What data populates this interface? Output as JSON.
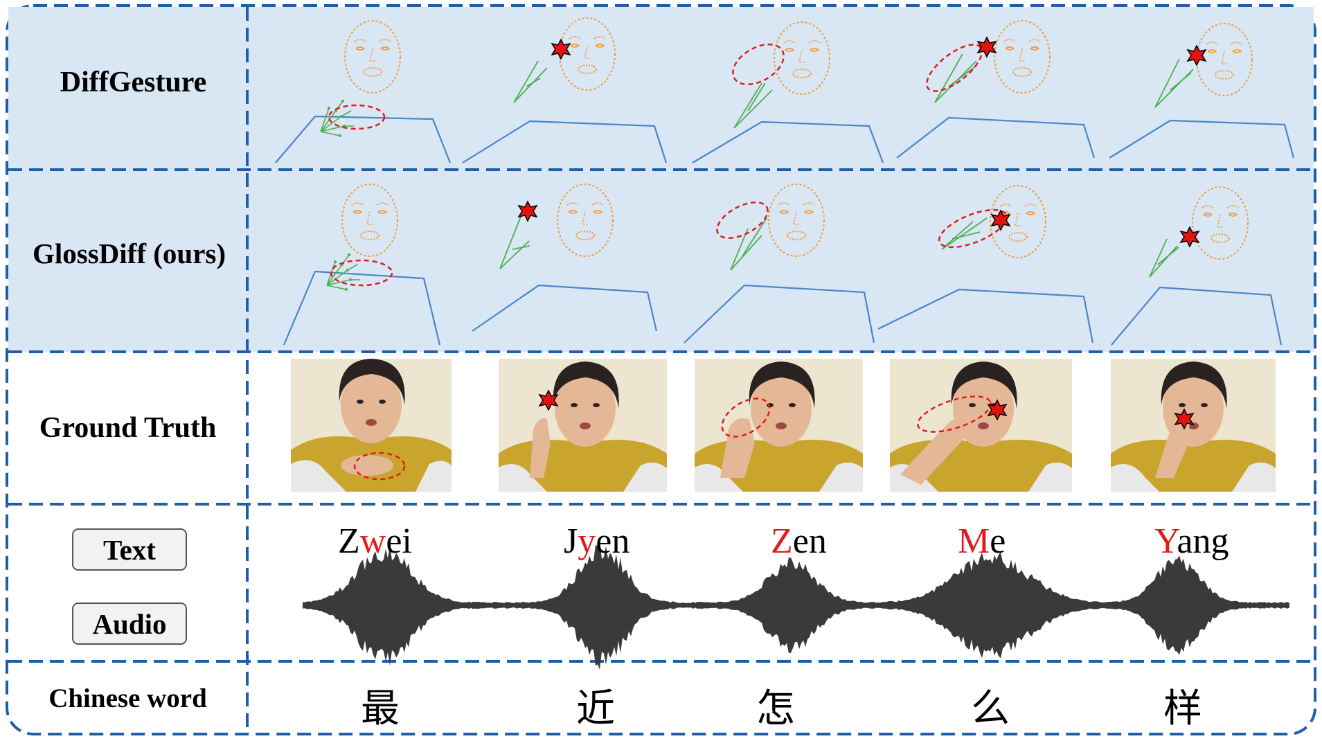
{
  "rows": {
    "diffgesture": "DiffGesture",
    "glossdiff": "GlossDiff (ours)",
    "ground_truth": "Ground Truth",
    "chinese_word": "Chinese word"
  },
  "modalities": {
    "text": "Text",
    "audio": "Audio"
  },
  "words": [
    {
      "pre": "Z",
      "hl": "w",
      "post": "ei"
    },
    {
      "pre": "J",
      "hl": "y",
      "post": "en"
    },
    {
      "pre": "",
      "hl": "Z",
      "post": "en"
    },
    {
      "pre": "",
      "hl": "M",
      "post": "e"
    },
    {
      "pre": "",
      "hl": "Y",
      "post": "ang"
    }
  ],
  "chinese": [
    "最",
    "近",
    "怎",
    "么",
    "样"
  ],
  "colors": {
    "border": "#1f5fa8",
    "panel": "#d9e6f4",
    "highlight": "#e11b1b",
    "body_skeleton": "#4a86c6",
    "hand_skeleton": "#4caf50",
    "face_keypoints": "#f29a3a",
    "waveform": "#3a3a3a"
  }
}
